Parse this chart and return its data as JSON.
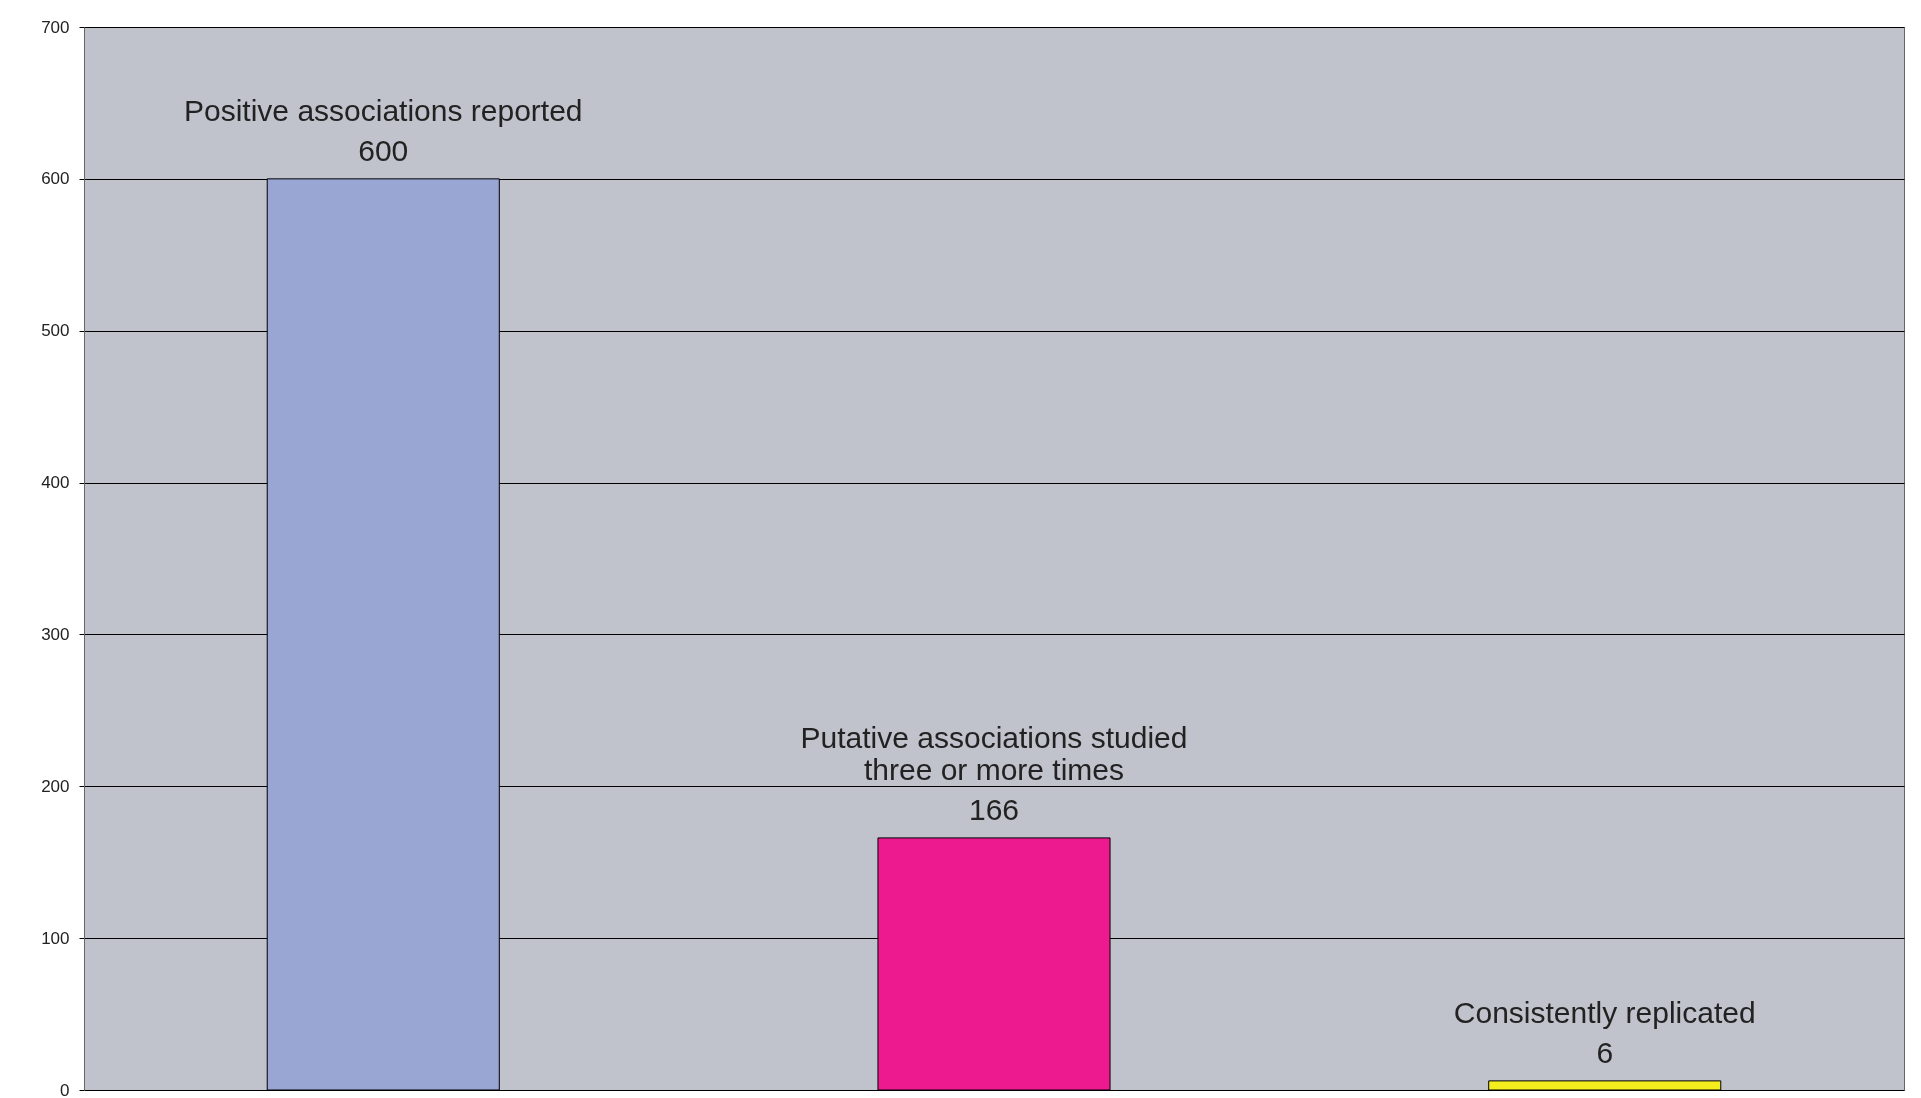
{
  "chart_data": {
    "type": "bar",
    "categories": [
      "Positive associations reported",
      "Putative associations studied three or more times",
      "Consistently replicated"
    ],
    "values": [
      600,
      166,
      6
    ],
    "colors": [
      "#99a6d4",
      "#ec198f",
      "#f5ee1e"
    ],
    "ylim": [
      0,
      700
    ],
    "yticks": [
      0,
      100,
      200,
      300,
      400,
      500,
      600,
      700
    ],
    "grid": "y",
    "data_labels": true,
    "tick_labels": "y"
  }
}
